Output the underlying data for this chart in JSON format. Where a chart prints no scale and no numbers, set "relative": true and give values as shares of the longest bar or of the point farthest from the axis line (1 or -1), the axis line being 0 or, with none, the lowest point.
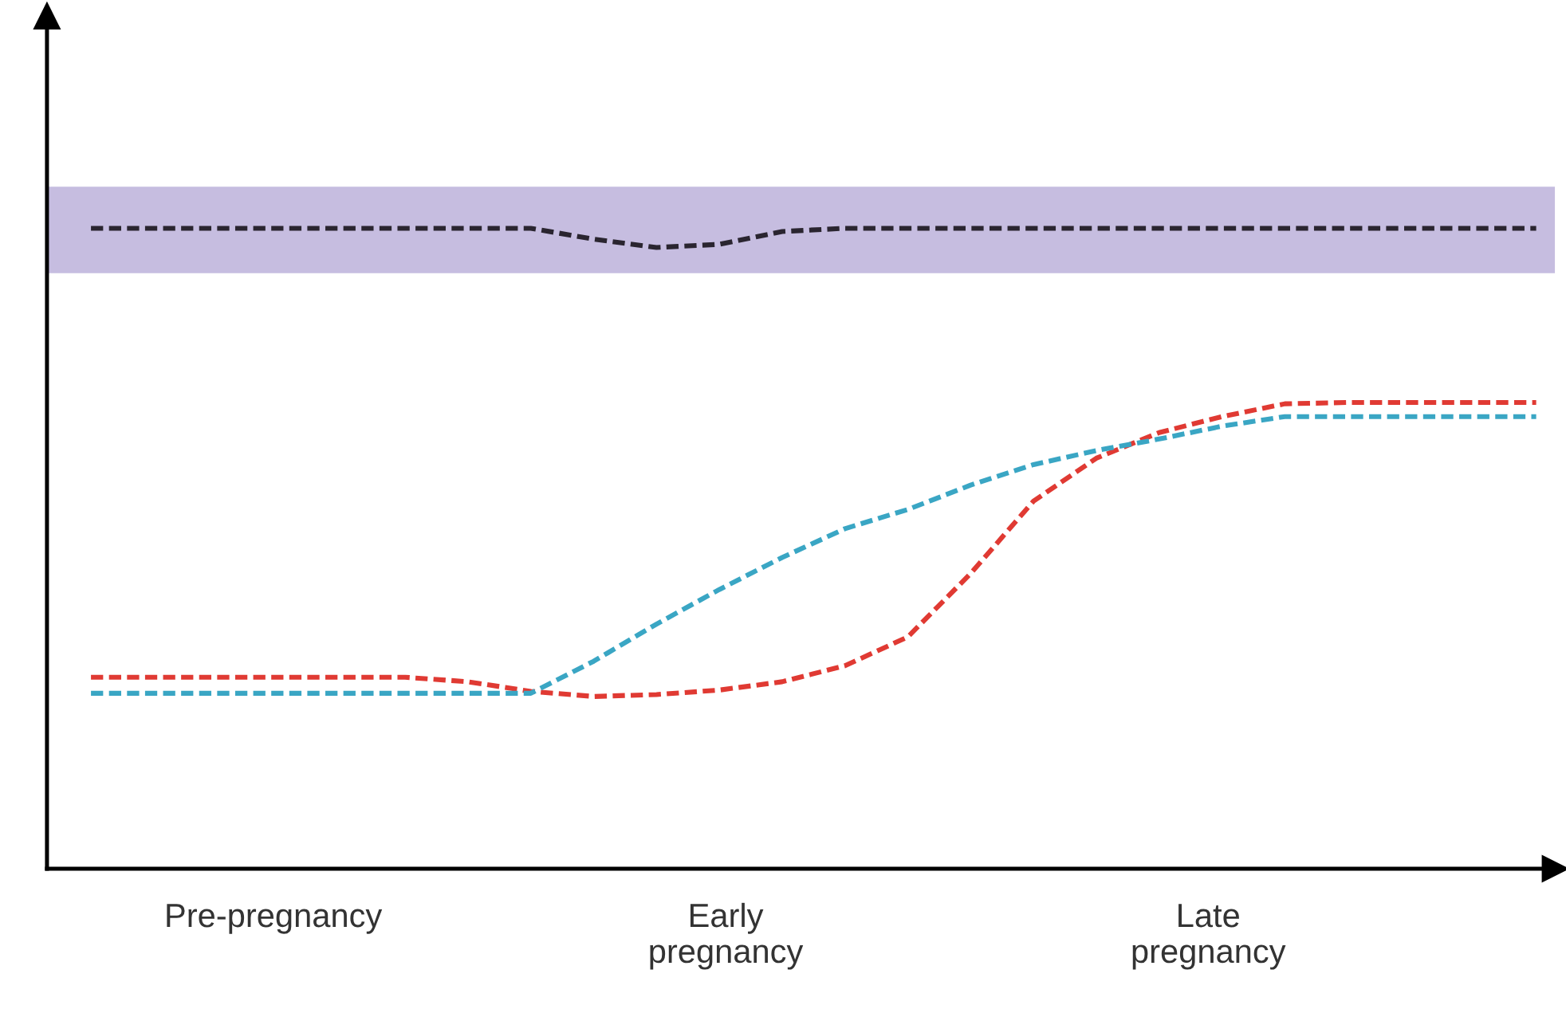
{
  "chart_data": {
    "type": "line",
    "relative": true,
    "line_style": "dashed",
    "marker": "none",
    "legend": false,
    "categories": [
      null,
      null,
      null,
      null,
      null,
      null,
      null,
      null,
      null,
      null,
      null,
      null,
      null,
      null,
      null,
      null,
      null,
      null,
      null,
      null,
      null,
      null,
      null,
      null
    ],
    "series": [
      {
        "color": "#2a2530",
        "values": [
          1,
          1,
          1,
          1,
          1,
          1,
          1,
          1,
          0.983,
          0.97,
          0.975,
          0.995,
          1,
          1,
          1,
          1,
          1,
          1,
          1,
          1,
          1,
          1,
          1,
          1
        ]
      },
      {
        "color": "#e03a33",
        "values": [
          0.299,
          0.299,
          0.299,
          0.299,
          0.299,
          0.299,
          0.292,
          0.277,
          0.269,
          0.272,
          0.279,
          0.292,
          0.317,
          0.362,
          0.461,
          0.574,
          0.641,
          0.681,
          0.706,
          0.726,
          0.728,
          0.728,
          0.728,
          0.728
        ]
      },
      {
        "color": "#3aa6c4",
        "values": [
          0.274,
          0.274,
          0.274,
          0.274,
          0.274,
          0.274,
          0.274,
          0.274,
          0.324,
          0.382,
          0.436,
          0.486,
          0.531,
          0.561,
          0.599,
          0.631,
          0.653,
          0.671,
          0.691,
          0.706,
          0.706,
          0.706,
          0.706,
          0.706
        ]
      }
    ],
    "bands": [
      {
        "axis": "y",
        "from": 0.93,
        "to": 1.065,
        "color": "#c6bde0"
      }
    ],
    "annotations": [
      "Pre-pregnancy",
      "Early\npregnancy",
      "Late\npregnancy"
    ]
  }
}
